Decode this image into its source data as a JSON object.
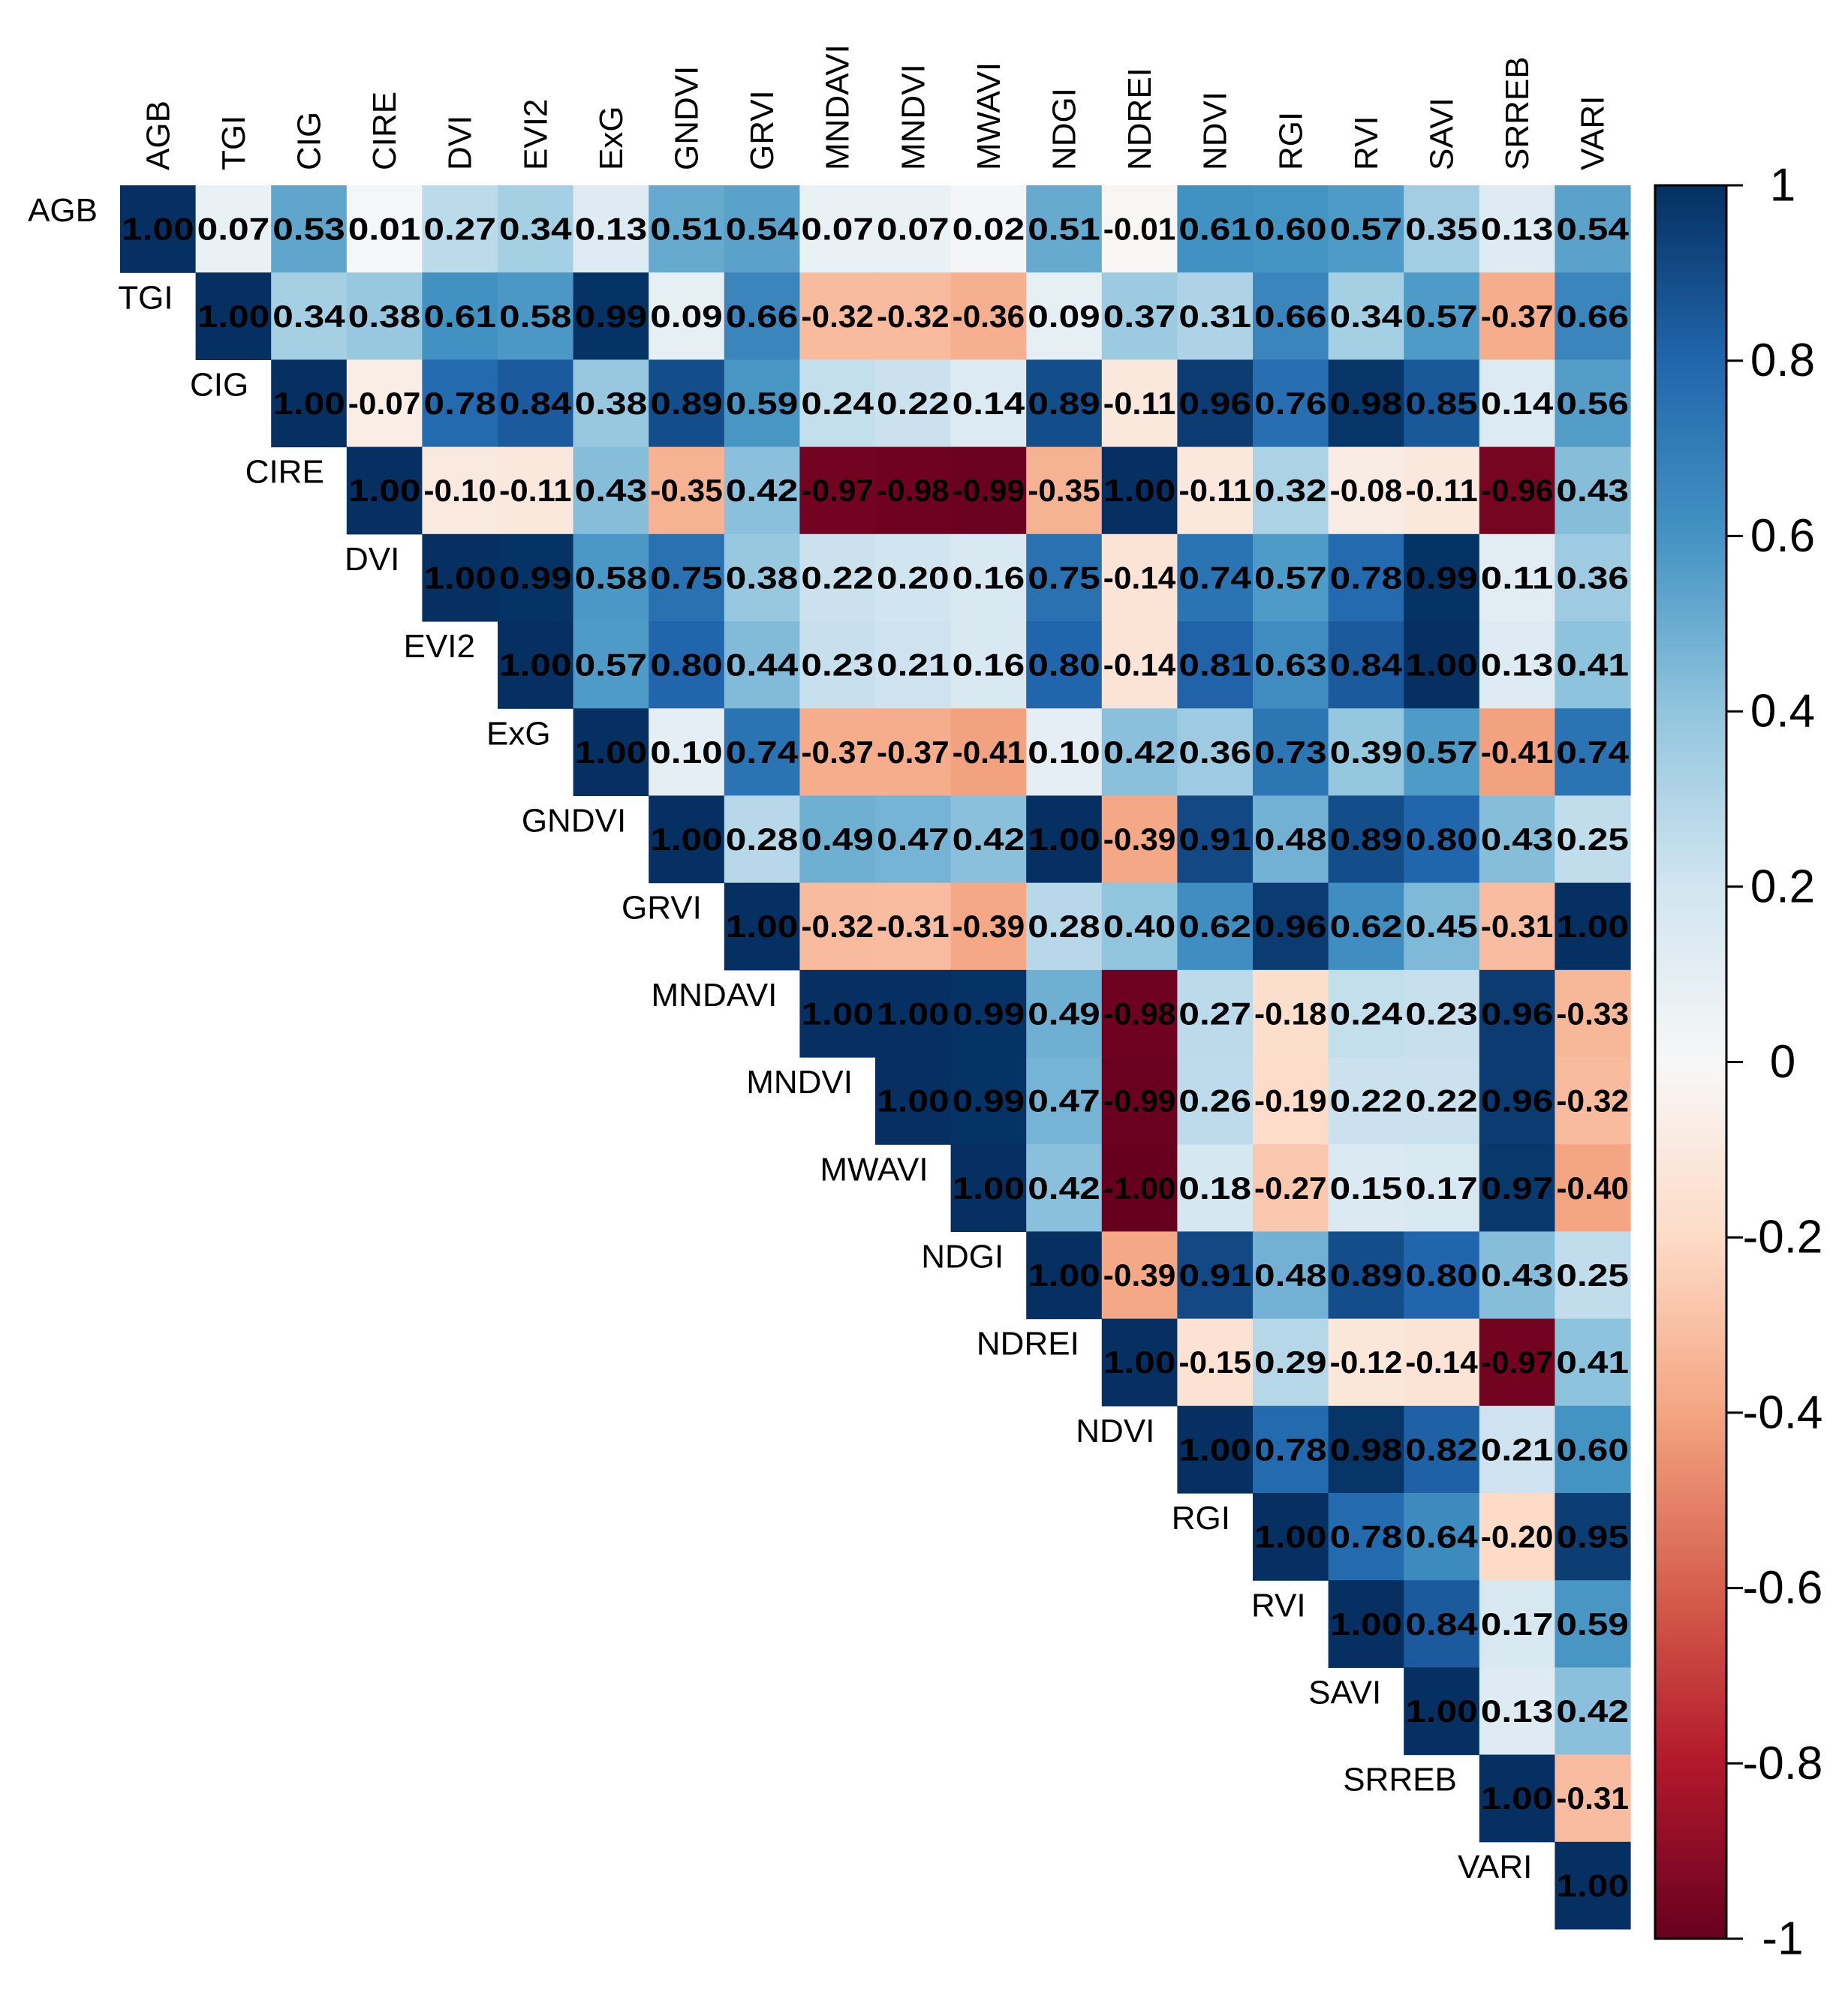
{
  "chart_data": {
    "type": "heatmap",
    "title": "",
    "variables": [
      "AGB",
      "TGI",
      "CIG",
      "CIRE",
      "DVI",
      "EVI2",
      "ExG",
      "GNDVI",
      "GRVI",
      "MNDAVI",
      "MNDVI",
      "MWAVI",
      "NDGI",
      "NDREI",
      "NDVI",
      "RGI",
      "RVI",
      "SAVI",
      "SRREB",
      "VARI"
    ],
    "matrix_upper_triangle": [
      [
        "1.00",
        "0.07",
        "0.53",
        "0.01",
        "0.27",
        "0.34",
        "0.13",
        "0.51",
        "0.54",
        "0.07",
        "0.07",
        "0.02",
        "0.51",
        "-0.01",
        "0.61",
        "0.60",
        "0.57",
        "0.35",
        "0.13",
        "0.54"
      ],
      [
        "1.00",
        "0.34",
        "0.38",
        "0.61",
        "0.58",
        "0.99",
        "0.09",
        "0.66",
        "-0.32",
        "-0.32",
        "-0.36",
        "0.09",
        "0.37",
        "0.31",
        "0.66",
        "0.34",
        "0.57",
        "-0.37",
        "0.66"
      ],
      [
        "1.00",
        "-0.07",
        "0.78",
        "0.84",
        "0.38",
        "0.89",
        "0.59",
        "0.24",
        "0.22",
        "0.14",
        "0.89",
        "-0.11",
        "0.96",
        "0.76",
        "0.98",
        "0.85",
        "0.14",
        "0.56"
      ],
      [
        "1.00",
        "-0.10",
        "-0.11",
        "0.43",
        "-0.35",
        "0.42",
        "-0.97",
        "-0.98",
        "-0.99",
        "-0.35",
        "1.00",
        "-0.11",
        "0.32",
        "-0.08",
        "-0.11",
        "-0.96",
        "0.43"
      ],
      [
        "1.00",
        "0.99",
        "0.58",
        "0.75",
        "0.38",
        "0.22",
        "0.20",
        "0.16",
        "0.75",
        "-0.14",
        "0.74",
        "0.57",
        "0.78",
        "0.99",
        "0.11",
        "0.36"
      ],
      [
        "1.00",
        "0.57",
        "0.80",
        "0.44",
        "0.23",
        "0.21",
        "0.16",
        "0.80",
        "-0.14",
        "0.81",
        "0.63",
        "0.84",
        "1.00",
        "0.13",
        "0.41"
      ],
      [
        "1.00",
        "0.10",
        "0.74",
        "-0.37",
        "-0.37",
        "-0.41",
        "0.10",
        "0.42",
        "0.36",
        "0.73",
        "0.39",
        "0.57",
        "-0.41",
        "0.74"
      ],
      [
        "1.00",
        "0.28",
        "0.49",
        "0.47",
        "0.42",
        "1.00",
        "-0.39",
        "0.91",
        "0.48",
        "0.89",
        "0.80",
        "0.43",
        "0.25"
      ],
      [
        "1.00",
        "-0.32",
        "-0.31",
        "-0.39",
        "0.28",
        "0.40",
        "0.62",
        "0.96",
        "0.62",
        "0.45",
        "-0.31",
        "1.00"
      ],
      [
        "1.00",
        "1.00",
        "0.99",
        "0.49",
        "-0.98",
        "0.27",
        "-0.18",
        "0.24",
        "0.23",
        "0.96",
        "-0.33"
      ],
      [
        "1.00",
        "0.99",
        "0.47",
        "-0.99",
        "0.26",
        "-0.19",
        "0.22",
        "0.22",
        "0.96",
        "-0.32"
      ],
      [
        "1.00",
        "0.42",
        "-1.00",
        "0.18",
        "-0.27",
        "0.15",
        "0.17",
        "0.97",
        "-0.40"
      ],
      [
        "1.00",
        "-0.39",
        "0.91",
        "0.48",
        "0.89",
        "0.80",
        "0.43",
        "0.25"
      ],
      [
        "1.00",
        "-0.15",
        "0.29",
        "-0.12",
        "-0.14",
        "-0.97",
        "0.41"
      ],
      [
        "1.00",
        "0.78",
        "0.98",
        "0.82",
        "0.21",
        "0.60"
      ],
      [
        "1.00",
        "0.78",
        "0.64",
        "-0.20",
        "0.95"
      ],
      [
        "1.00",
        "0.84",
        "0.17",
        "0.59"
      ],
      [
        "1.00",
        "0.13",
        "0.42"
      ],
      [
        "1.00",
        "-0.31"
      ],
      [
        "1.00"
      ]
    ],
    "color_scale": {
      "range": [
        -1,
        1
      ],
      "ticks": [
        "1",
        "0.8",
        "0.6",
        "0.4",
        "0.2",
        "0",
        "-0.2",
        "-0.4",
        "-0.6",
        "-0.8",
        "-1"
      ],
      "colors": [
        "#67001f",
        "#b2182b",
        "#d6604d",
        "#f4a582",
        "#fddbc7",
        "#f7f7f7",
        "#d1e5f0",
        "#92c5de",
        "#4393c3",
        "#2166ac",
        "#053061"
      ]
    },
    "legend_position": "right"
  }
}
